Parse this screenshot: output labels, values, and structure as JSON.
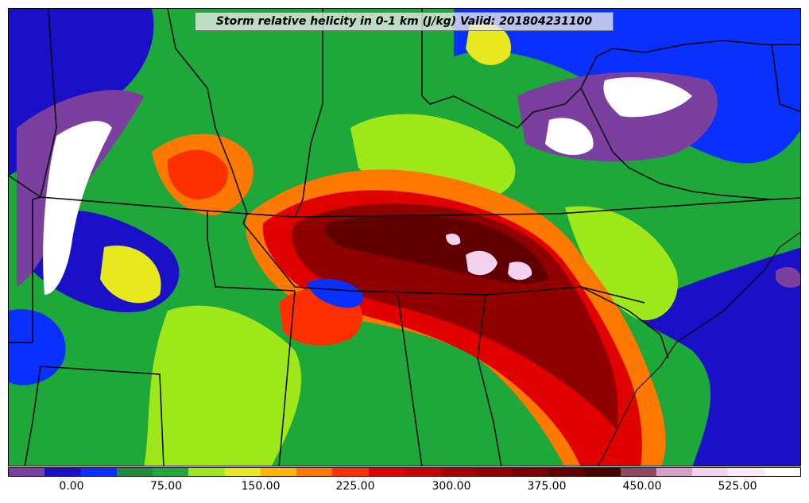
{
  "title": "Storm relative helicity in 0-1 km (J/kg) Valid: 201804231100",
  "colorbar": {
    "colors": [
      "#7b3fa0",
      "#1a10c8",
      "#0a30ff",
      "#1e8c3a",
      "#1fa83a",
      "#9ee81a",
      "#e8e81e",
      "#ffb400",
      "#ff7800",
      "#ff3000",
      "#e00000",
      "#c80000",
      "#a80000",
      "#900000",
      "#780000",
      "#600000",
      "#480000",
      "#8c4a60",
      "#d4a0c8",
      "#f2d2ee",
      "#fae8f8",
      "#ffffff"
    ],
    "tick_labels": [
      "0.00",
      "75.00",
      "150.00",
      "225.00",
      "300.00",
      "375.00",
      "450.00",
      "525.00"
    ]
  }
}
